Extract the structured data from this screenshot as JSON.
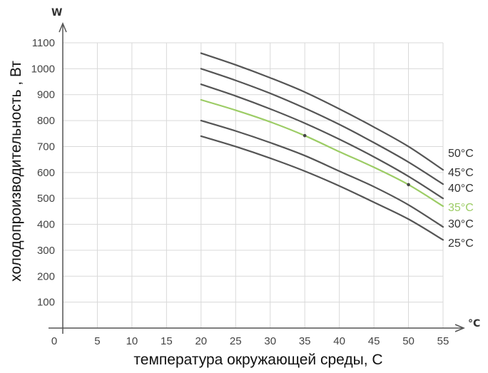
{
  "chart_data": {
    "type": "line",
    "title": "",
    "xlabel": "температура окружающей среды, С",
    "ylabel": "холодопроизводительность  , Вт",
    "x_unit": "°C",
    "y_unit": "W",
    "xlim": [
      0,
      55
    ],
    "ylim": [
      0,
      1100
    ],
    "x_ticks": [
      0,
      5,
      10,
      15,
      20,
      25,
      30,
      35,
      40,
      45,
      50,
      55
    ],
    "y_ticks": [
      100,
      200,
      300,
      400,
      500,
      600,
      700,
      800,
      900,
      1000,
      1100
    ],
    "grid": true,
    "x": [
      20,
      25,
      30,
      35,
      40,
      45,
      50,
      55
    ],
    "series": [
      {
        "name": "50°C",
        "color": "#555555",
        "values": [
          1060,
          1015,
          965,
          910,
          845,
          775,
          700,
          610
        ]
      },
      {
        "name": "45°C",
        "color": "#555555",
        "values": [
          1000,
          955,
          905,
          848,
          785,
          715,
          640,
          555
        ]
      },
      {
        "name": "40°C",
        "color": "#555555",
        "values": [
          940,
          895,
          845,
          790,
          728,
          660,
          585,
          500
        ]
      },
      {
        "name": "35°C",
        "color": "#9ccc65",
        "values": [
          880,
          840,
          795,
          742,
          680,
          620,
          553,
          470
        ]
      },
      {
        "name": "30°C",
        "color": "#555555",
        "values": [
          800,
          760,
          715,
          665,
          605,
          545,
          475,
          390
        ]
      },
      {
        "name": "25°C",
        "color": "#555555",
        "values": [
          740,
          700,
          655,
          605,
          548,
          485,
          420,
          340
        ]
      }
    ],
    "markers": [
      {
        "x": 35,
        "y": 742
      },
      {
        "x": 50,
        "y": 553
      }
    ]
  }
}
